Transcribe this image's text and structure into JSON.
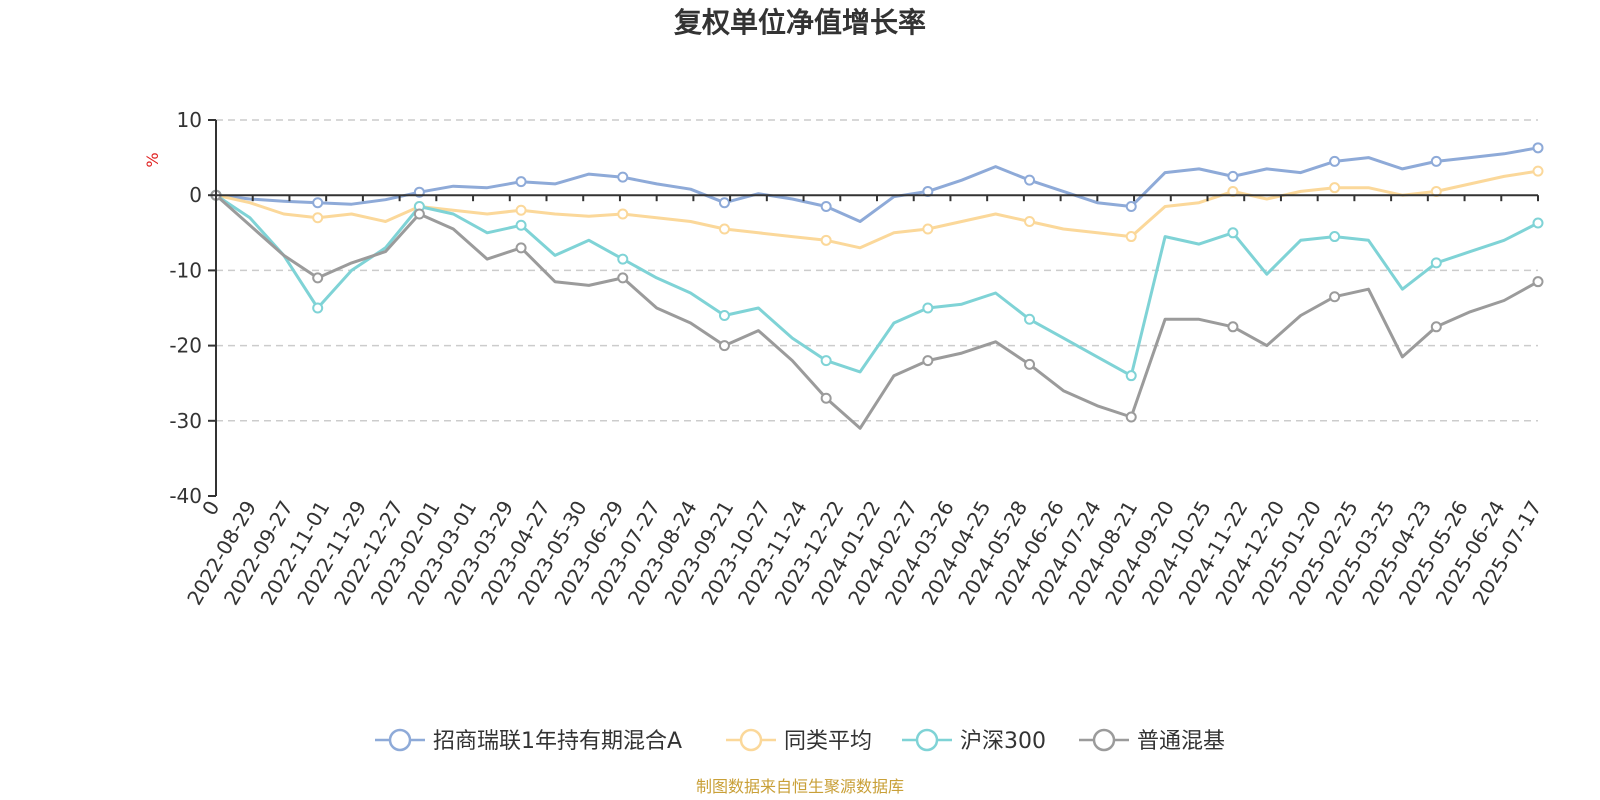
{
  "chart_data": {
    "type": "line",
    "title": "复权单位净值增长率",
    "y_unit": "%",
    "ylim": [
      -40,
      10
    ],
    "y_ticks": [
      10,
      0,
      -10,
      -20,
      -30,
      -40
    ],
    "x_ticks": [
      "0",
      "2022-08-29",
      "2022-09-27",
      "2022-11-01",
      "2022-11-29",
      "2022-12-27",
      "2023-02-01",
      "2023-03-01",
      "2023-03-29",
      "2023-04-27",
      "2023-05-30",
      "2023-06-29",
      "2023-07-27",
      "2023-08-24",
      "2023-09-21",
      "2023-10-27",
      "2023-11-24",
      "2023-12-22",
      "2024-01-22",
      "2024-02-27",
      "2024-03-26",
      "2024-04-25",
      "2024-05-28",
      "2024-06-26",
      "2024-07-24",
      "2024-08-21",
      "2024-09-20",
      "2024-10-25",
      "2024-11-22",
      "2024-12-20",
      "2025-01-20",
      "2025-02-25",
      "2025-03-25",
      "2025-04-23",
      "2025-05-26",
      "2025-06-24",
      "2025-07-17"
    ],
    "gridlines": true,
    "legend_position": "bottom",
    "source_note": "制图数据来自恒生聚源数据库",
    "series": [
      {
        "name": "招商瑞联1年持有期混合A",
        "color": "#8eaad8",
        "values": [
          0,
          -0.5,
          -0.8,
          -1.0,
          -1.2,
          -0.6,
          0.4,
          1.2,
          1.0,
          1.8,
          1.5,
          2.8,
          2.4,
          1.5,
          0.8,
          -1.0,
          0.2,
          -0.5,
          -1.5,
          -3.5,
          -0.2,
          0.5,
          2.0,
          3.8,
          2.0,
          0.5,
          -1.0,
          -1.5,
          3.0,
          3.5,
          2.5,
          3.5,
          3.0,
          4.5,
          5.0,
          3.5,
          4.5,
          5.0,
          5.5,
          6.3
        ]
      },
      {
        "name": "同类平均",
        "color": "#fbd89a",
        "values": [
          0,
          -1.0,
          -2.5,
          -3.0,
          -2.5,
          -3.5,
          -1.5,
          -2.0,
          -2.5,
          -2.0,
          -2.5,
          -2.8,
          -2.5,
          -3.0,
          -3.5,
          -4.5,
          -5.0,
          -5.5,
          -6.0,
          -7.0,
          -5.0,
          -4.5,
          -3.5,
          -2.5,
          -3.5,
          -4.5,
          -5.0,
          -5.5,
          -1.5,
          -1.0,
          0.5,
          -0.5,
          0.5,
          1.0,
          1.0,
          0.0,
          0.5,
          1.5,
          2.5,
          3.2
        ]
      },
      {
        "name": "沪深300",
        "color": "#7fd3d6",
        "values": [
          0,
          -3.0,
          -8.0,
          -15.0,
          -10.0,
          -7.0,
          -1.5,
          -2.5,
          -5.0,
          -4.0,
          -8.0,
          -6.0,
          -8.5,
          -11.0,
          -13.0,
          -16.0,
          -15.0,
          -19.0,
          -22.0,
          -23.5,
          -17.0,
          -15.0,
          -14.5,
          -13.0,
          -16.5,
          -19.0,
          -21.5,
          -24.0,
          -5.5,
          -6.5,
          -5.0,
          -10.5,
          -6.0,
          -5.5,
          -6.0,
          -12.5,
          -9.0,
          -7.5,
          -6.0,
          -3.7
        ]
      },
      {
        "name": "普通混基",
        "color": "#9b9b9b",
        "values": [
          0,
          -4.0,
          -8.0,
          -11.0,
          -9.0,
          -7.5,
          -2.5,
          -4.5,
          -8.5,
          -7.0,
          -11.5,
          -12.0,
          -11.0,
          -15.0,
          -17.0,
          -20.0,
          -18.0,
          -22.0,
          -27.0,
          -31.0,
          -24.0,
          -22.0,
          -21.0,
          -19.5,
          -22.5,
          -26.0,
          -28.0,
          -29.5,
          -16.5,
          -16.5,
          -17.5,
          -20.0,
          -16.0,
          -13.5,
          -12.5,
          -21.5,
          -17.5,
          -15.5,
          -14.0,
          -11.5
        ]
      }
    ]
  },
  "colors": {
    "unit_label": "#e02020",
    "source_text": "#c9a038",
    "axis": "#333333",
    "grid": "#cccccc"
  }
}
